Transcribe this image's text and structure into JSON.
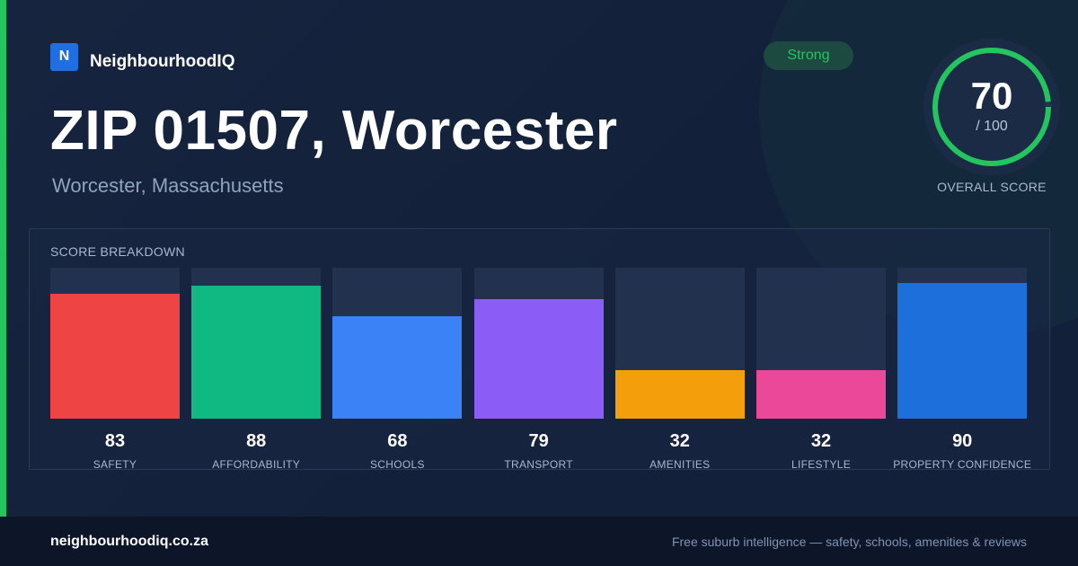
{
  "brand": {
    "logo_letter": "N",
    "name": "NeighbourhoodIQ"
  },
  "header": {
    "title": "ZIP 01507, Worcester",
    "subtitle": "Worcester, Massachusetts",
    "badge": "Strong"
  },
  "overall": {
    "score": "70",
    "denominator": "/ 100",
    "label": "OVERALL SCORE",
    "value": 70,
    "max": 100
  },
  "breakdown": {
    "title": "SCORE BREAKDOWN"
  },
  "colors": {
    "accent": "#22c55e",
    "safety": "#ef4444",
    "affordability": "#10b981",
    "schools": "#3b82f6",
    "transport": "#8b5cf6",
    "amenities": "#f59e0b",
    "lifestyle": "#ec4899",
    "property_confidence": "#1d6fdb"
  },
  "chart_data": {
    "type": "bar",
    "title": "SCORE BREAKDOWN",
    "categories": [
      "SAFETY",
      "AFFORDABILITY",
      "SCHOOLS",
      "TRANSPORT",
      "AMENITIES",
      "LIFESTYLE",
      "PROPERTY CONFIDENCE"
    ],
    "values": [
      83,
      88,
      68,
      79,
      32,
      32,
      90
    ],
    "value_labels": [
      "83",
      "88",
      "68",
      "79",
      "32",
      "32",
      "90"
    ],
    "colors": [
      "#ef4444",
      "#10b981",
      "#3b82f6",
      "#8b5cf6",
      "#f59e0b",
      "#ec4899",
      "#1d6fdb"
    ],
    "ylim": [
      0,
      100
    ]
  },
  "footer": {
    "domain": "neighbourhoodiq.co.za",
    "tagline": "Free suburb intelligence — safety, schools, amenities & reviews"
  }
}
